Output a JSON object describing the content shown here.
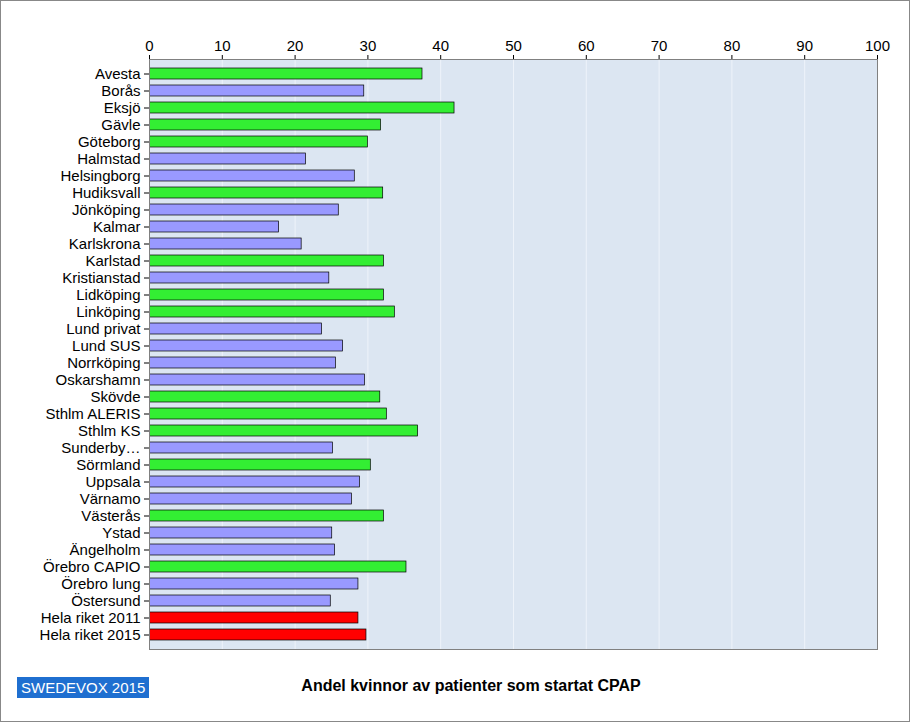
{
  "chart_data": {
    "type": "bar",
    "orientation": "horizontal",
    "title": "Andel kvinnor av patienter som startat CPAP",
    "annotations": [
      "SWEDEVOX 2015"
    ],
    "categories": [
      "Avesta",
      "Borås",
      "Eksjö",
      "Gävle",
      "Göteborg",
      "Halmstad",
      "Helsingborg",
      "Hudiksvall",
      "Jönköping",
      "Kalmar",
      "Karlskrona",
      "Karlstad",
      "Kristianstad",
      "Lidköping",
      "Linköping",
      "Lund privat",
      "Lund SUS",
      "Norrköping",
      "Oskarshamn",
      "Skövde",
      "Sthlm ALERIS",
      "Sthlm KS",
      "Sunderby…",
      "Sörmland",
      "Uppsala",
      "Värnamo",
      "Västerås",
      "Ystad",
      "Ängelholm",
      "Örebro CAPIO",
      "Örebro lung",
      "Östersund",
      "Hela riket 2011",
      "Hela riket 2015"
    ],
    "values": [
      37.5,
      29.5,
      41.9,
      31.8,
      30.0,
      21.5,
      28.2,
      32.1,
      26.0,
      17.8,
      20.9,
      32.2,
      24.7,
      32.2,
      33.7,
      23.7,
      26.6,
      25.6,
      29.6,
      31.7,
      32.6,
      36.9,
      25.2,
      30.4,
      28.9,
      27.8,
      32.2,
      25.1,
      25.5,
      35.3,
      28.7,
      24.9,
      28.7,
      29.8
    ],
    "colors": [
      "#33ee33",
      "#9999ff",
      "#33ee33",
      "#33ee33",
      "#33ee33",
      "#9999ff",
      "#9999ff",
      "#33ee33",
      "#9999ff",
      "#9999ff",
      "#9999ff",
      "#33ee33",
      "#9999ff",
      "#33ee33",
      "#33ee33",
      "#9999ff",
      "#9999ff",
      "#9999ff",
      "#9999ff",
      "#33ee33",
      "#33ee33",
      "#33ee33",
      "#9999ff",
      "#33ee33",
      "#9999ff",
      "#9999ff",
      "#33ee33",
      "#9999ff",
      "#9999ff",
      "#33ee33",
      "#9999ff",
      "#9999ff",
      "#ff0000",
      "#ff0000"
    ],
    "xlim": [
      0,
      100
    ],
    "xticks": [
      0,
      10,
      20,
      30,
      40,
      50,
      60,
      70,
      80,
      90,
      100
    ],
    "grid": true
  }
}
